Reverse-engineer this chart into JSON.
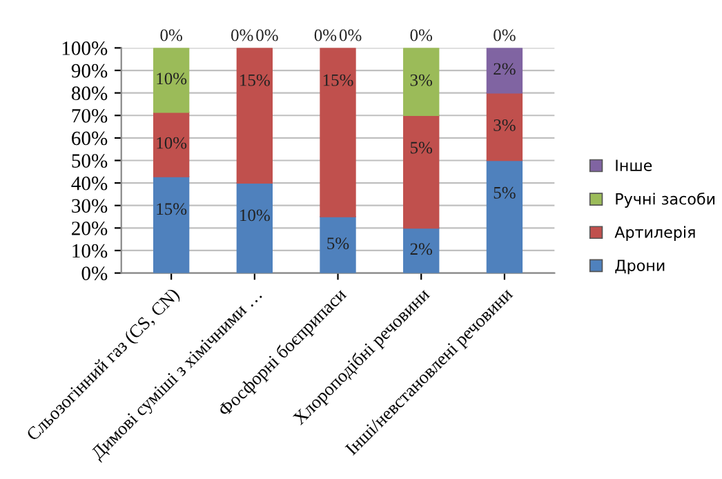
{
  "chart_data": {
    "type": "bar",
    "stacked": true,
    "categories": [
      "Сльозогінний газ (CS, CN)",
      "Димові суміші з хімічними …",
      "Фосфорні боєприпаси",
      "Хлороподібні речовини",
      "Інші/невстановлені речовини"
    ],
    "series": [
      {
        "name": "Дрони",
        "color": "#4f81bd",
        "values": [
          42.8,
          40,
          25,
          20,
          50
        ]
      },
      {
        "name": "Артилерія",
        "color": "#c0504d",
        "values": [
          28.6,
          60,
          75,
          50,
          30
        ]
      },
      {
        "name": "Ручні засоби",
        "color": "#9bbb59",
        "values": [
          28.6,
          0,
          0,
          30,
          0
        ]
      },
      {
        "name": "Інше",
        "color": "#8064a2",
        "values": [
          0,
          0,
          0,
          0,
          20
        ]
      }
    ],
    "annotations": [
      {
        "text": "15%",
        "x": "Сльозогінний газ (CS, CN)",
        "y": 42.8
      },
      {
        "text": "10%",
        "x": "Сльозогінний газ (CS, CN)",
        "y": 71.4
      },
      {
        "text": "10%",
        "x": "Сльозогінний газ (CS, CN)",
        "y": 100
      },
      {
        "text": "0%",
        "x": "Сльозогінний газ (CS, CN)",
        "y": 100
      },
      {
        "text": "10%",
        "x": "Димові суміші з хімічними …",
        "y": 40
      },
      {
        "text": "15%",
        "x": "Димові суміші з хімічними …",
        "y": 100
      },
      {
        "text": "0%",
        "x": "Димові суміші з хімічними …",
        "y": 100
      },
      {
        "text": "0%",
        "x": "Димові суміші з хімічними …",
        "y": 100
      },
      {
        "text": "5%",
        "x": "Фосфорні боєприпаси",
        "y": 25
      },
      {
        "text": "15%",
        "x": "Фосфорні боєприпаси",
        "y": 100
      },
      {
        "text": "0%",
        "x": "Фосфорні боєприпаси",
        "y": 100
      },
      {
        "text": "0%",
        "x": "Фосфорні боєприпаси",
        "y": 100
      },
      {
        "text": "2%",
        "x": "Хлороподібні речовини",
        "y": 20
      },
      {
        "text": "5%",
        "x": "Хлороподібні речовини",
        "y": 70
      },
      {
        "text": "3%",
        "x": "Хлороподібні речовини",
        "y": 100
      },
      {
        "text": "0%",
        "x": "Хлороподібні речовини",
        "y": 100
      },
      {
        "text": "5%",
        "x": "Інші/невстановлені речовини",
        "y": 50
      },
      {
        "text": "3%",
        "x": "Інші/невстановлені речовини",
        "y": 80
      },
      {
        "text": "2%",
        "x": "Інші/невстановлені речовини",
        "y": 100
      },
      {
        "text": "0%",
        "x": "Інші/невстановлені речовини",
        "y": 100
      }
    ],
    "ylim": [
      0,
      100
    ],
    "yticks": [
      {
        "value": 0,
        "label": "0%"
      },
      {
        "value": 10,
        "label": "10%"
      },
      {
        "value": 20,
        "label": "20%"
      },
      {
        "value": 30,
        "label": "30%"
      },
      {
        "value": 40,
        "label": "40%"
      },
      {
        "value": 50,
        "label": "50%"
      },
      {
        "value": 60,
        "label": "60%"
      },
      {
        "value": 70,
        "label": "70%"
      },
      {
        "value": 80,
        "label": "80%"
      },
      {
        "value": 90,
        "label": "90%"
      },
      {
        "value": 100,
        "label": "100%"
      }
    ],
    "grid": "y",
    "legend": "right"
  }
}
